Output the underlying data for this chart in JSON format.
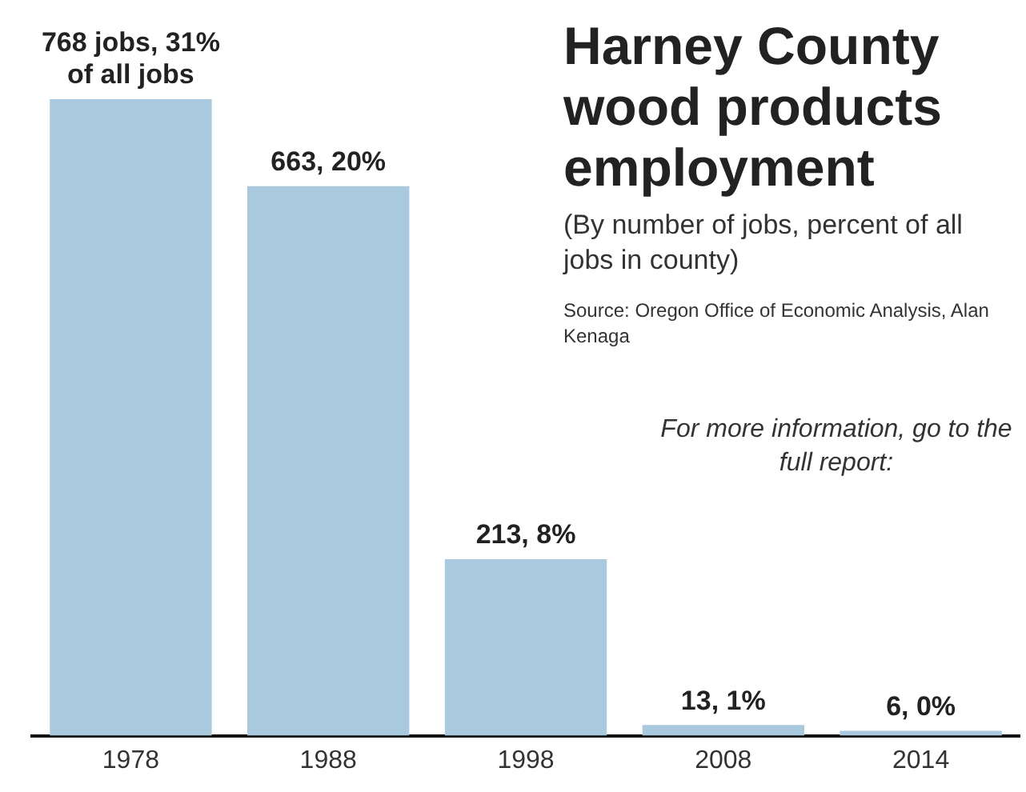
{
  "chart_data": {
    "type": "bar",
    "title": "Harney County wood products employment",
    "subtitle": "(By number of jobs, percent of all jobs in county)",
    "annotations": [
      "Source: Oregon Office of Economic Analysis, Alan Kenaga",
      "For more information, go to the full report:"
    ],
    "categories": [
      "1978",
      "1988",
      "1998",
      "2008",
      "2014"
    ],
    "values": [
      768,
      663,
      213,
      13,
      6
    ],
    "color": "#a9c9de",
    "value_labels": [
      "768 jobs, 31% of all jobs",
      "663, 20%",
      "213, 8%",
      "13, 1%",
      "6, 0%"
    ]
  }
}
